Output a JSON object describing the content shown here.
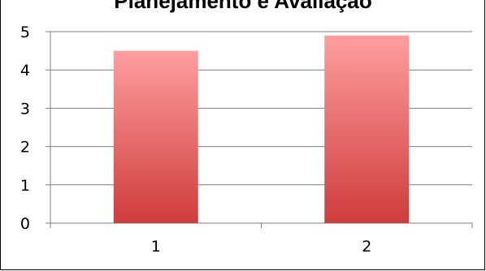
{
  "chart_data": {
    "type": "bar",
    "title": "Planejamento e Avaliação",
    "categories": [
      "1",
      "2"
    ],
    "values": [
      4.5,
      4.9
    ],
    "ylim": [
      0,
      5
    ],
    "yticks": [
      "0",
      "1",
      "2",
      "3",
      "4",
      "5"
    ],
    "grid": true,
    "legend": "none",
    "colors": {
      "bar_top": "#ff9e9e",
      "bar_bottom": "#cf3c3c",
      "grid": "#7f7f7f"
    }
  }
}
